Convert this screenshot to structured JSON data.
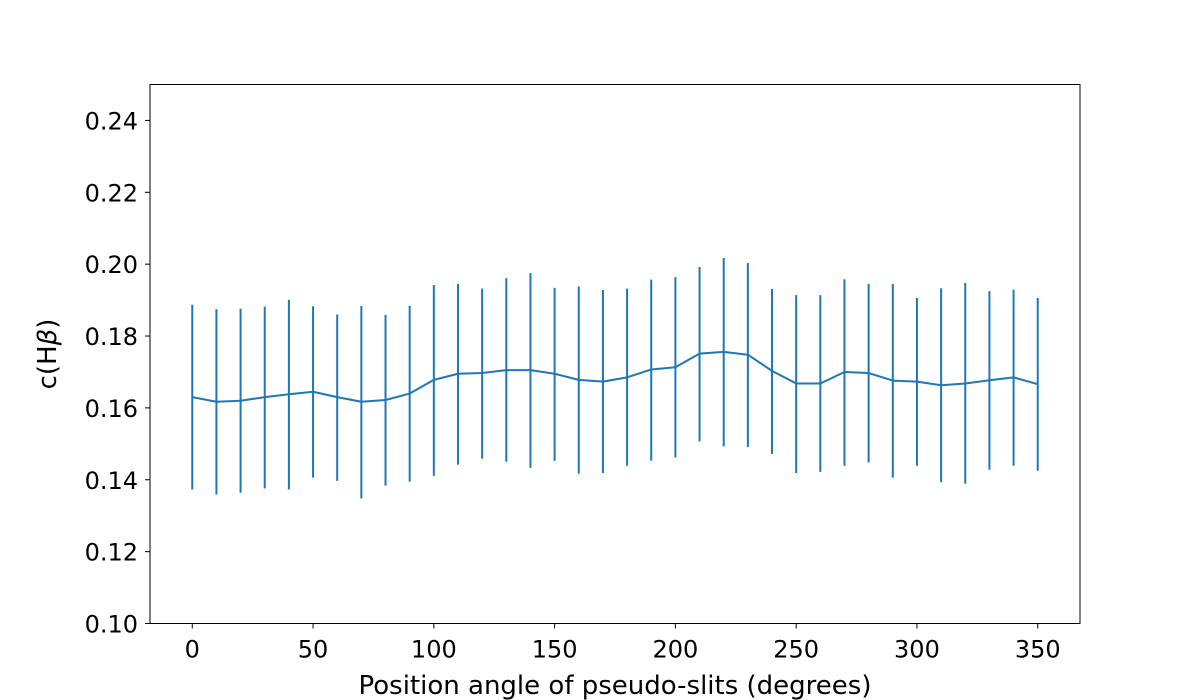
{
  "chart_data": {
    "type": "line",
    "title": "",
    "xlabel": "Position angle of pseudo-slits (degrees)",
    "ylabel": "c(Hβ)",
    "ylabel_parts": {
      "prefix": "c(H",
      "symbol": "β",
      "suffix": ")"
    },
    "xlim": [
      -17.5,
      367.5
    ],
    "ylim": [
      0.1,
      0.25
    ],
    "xticks": [
      0,
      50,
      100,
      150,
      200,
      250,
      300,
      350
    ],
    "xtick_labels": [
      "0",
      "50",
      "100",
      "150",
      "200",
      "250",
      "300",
      "350"
    ],
    "yticks": [
      0.1,
      0.12,
      0.14,
      0.16,
      0.18,
      0.2,
      0.22,
      0.24
    ],
    "ytick_labels": [
      "0.10",
      "0.12",
      "0.14",
      "0.16",
      "0.18",
      "0.20",
      "0.22",
      "0.24"
    ],
    "grid": false,
    "legend": "none",
    "color": "#1f77b4",
    "series": [
      {
        "x": [
          0,
          10,
          20,
          30,
          40,
          50,
          60,
          70,
          80,
          90,
          100,
          110,
          120,
          130,
          140,
          150,
          160,
          170,
          180,
          190,
          200,
          210,
          220,
          230,
          240,
          250,
          260,
          270,
          280,
          290,
          300,
          310,
          320,
          330,
          340,
          350
        ],
        "y": [
          0.163,
          0.1617,
          0.162,
          0.163,
          0.1638,
          0.1645,
          0.163,
          0.1617,
          0.1622,
          0.164,
          0.1678,
          0.1695,
          0.1697,
          0.1705,
          0.1705,
          0.1695,
          0.1678,
          0.1673,
          0.1685,
          0.1707,
          0.1713,
          0.1751,
          0.1756,
          0.1748,
          0.1703,
          0.1668,
          0.1668,
          0.17,
          0.1697,
          0.1676,
          0.1673,
          0.1663,
          0.1668,
          0.1677,
          0.1685,
          0.1666
        ],
        "yerr_low": [
          0.1373,
          0.1359,
          0.1364,
          0.1376,
          0.1373,
          0.1406,
          0.1397,
          0.1348,
          0.1384,
          0.1395,
          0.1411,
          0.1442,
          0.1459,
          0.145,
          0.1433,
          0.1453,
          0.1417,
          0.1419,
          0.1439,
          0.1453,
          0.1462,
          0.1507,
          0.1493,
          0.1491,
          0.1472,
          0.1419,
          0.1422,
          0.1439,
          0.1448,
          0.1406,
          0.1439,
          0.1393,
          0.1389,
          0.1428,
          0.1439,
          0.1425
        ],
        "yerr_high": [
          0.1887,
          0.1875,
          0.1876,
          0.1882,
          0.1901,
          0.1883,
          0.186,
          0.1884,
          0.1859,
          0.1884,
          0.1942,
          0.1945,
          0.1932,
          0.1961,
          0.1975,
          0.1934,
          0.1938,
          0.1928,
          0.1932,
          0.1957,
          0.1964,
          0.1992,
          0.2017,
          0.2003,
          0.1931,
          0.1914,
          0.1914,
          0.1958,
          0.1945,
          0.1945,
          0.1906,
          0.1933,
          0.1948,
          0.1925,
          0.1929,
          0.1906
        ]
      }
    ]
  }
}
